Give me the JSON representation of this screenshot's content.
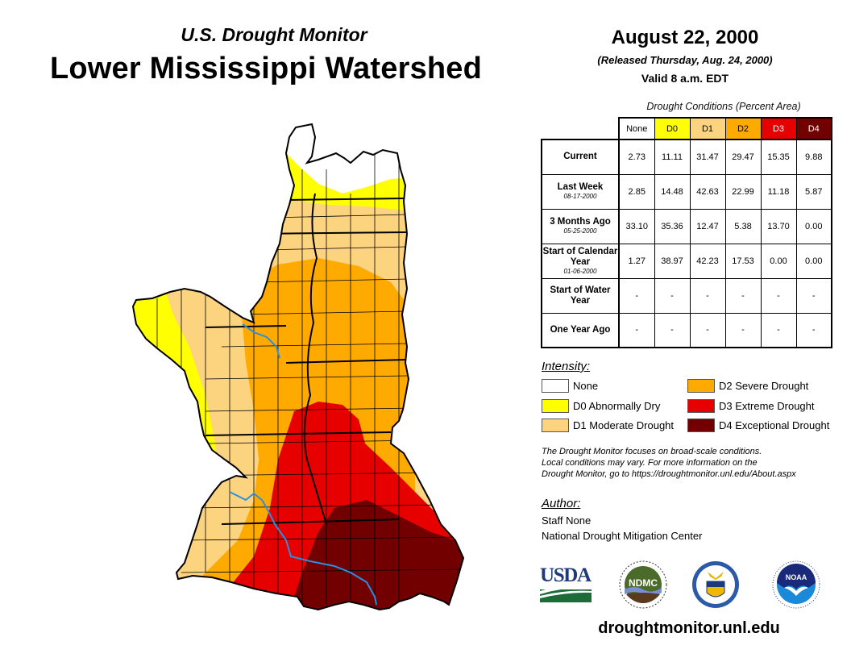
{
  "header": {
    "subtitle": "U.S. Drought Monitor",
    "title": "Lower Mississippi Watershed",
    "date": "August 22, 2000",
    "released": "(Released Thursday, Aug. 24, 2000)",
    "valid": "Valid 8 a.m. EDT"
  },
  "colors": {
    "none": "#ffffff",
    "d0": "#ffff00",
    "d1": "#fcd37f",
    "d2": "#ffaa00",
    "d3": "#e60000",
    "d4": "#730000",
    "river": "#2b8fe0"
  },
  "table": {
    "caption": "Drought Conditions (Percent Area)",
    "columns": [
      "None",
      "D0",
      "D1",
      "D2",
      "D3",
      "D4"
    ],
    "rows": [
      {
        "label": "Current",
        "sub": "",
        "values": [
          "2.73",
          "11.11",
          "31.47",
          "29.47",
          "15.35",
          "9.88"
        ]
      },
      {
        "label": "Last Week",
        "sub": "08-17-2000",
        "values": [
          "2.85",
          "14.48",
          "42.63",
          "22.99",
          "11.18",
          "5.87"
        ]
      },
      {
        "label": "3 Months Ago",
        "sub": "05-25-2000",
        "values": [
          "33.10",
          "35.36",
          "12.47",
          "5.38",
          "13.70",
          "0.00"
        ]
      },
      {
        "label": "Start of Calendar Year",
        "sub": "01-06-2000",
        "values": [
          "1.27",
          "38.97",
          "42.23",
          "17.53",
          "0.00",
          "0.00"
        ]
      },
      {
        "label": "Start of Water Year",
        "sub": "",
        "values": [
          "-",
          "-",
          "-",
          "-",
          "-",
          "-"
        ]
      },
      {
        "label": "One Year Ago",
        "sub": "",
        "values": [
          "-",
          "-",
          "-",
          "-",
          "-",
          "-"
        ]
      }
    ]
  },
  "legend": {
    "title": "Intensity:",
    "items": [
      {
        "label": "None",
        "key": "none"
      },
      {
        "label": "D0 Abnormally Dry",
        "key": "d0"
      },
      {
        "label": "D1 Moderate Drought",
        "key": "d1"
      },
      {
        "label": "D2 Severe Drought",
        "key": "d2"
      },
      {
        "label": "D3 Extreme Drought",
        "key": "d3"
      },
      {
        "label": "D4 Exceptional Drought",
        "key": "d4"
      }
    ]
  },
  "disclaimer": {
    "line1": "The Drought Monitor focuses on broad-scale conditions.",
    "line2": "Local conditions may vary. For more information on the",
    "line3": "Drought Monitor, go to https://droughtmonitor.unl.edu/About.aspx"
  },
  "author": {
    "title": "Author:",
    "name": "Staff None",
    "org": "National Drought Mitigation Center"
  },
  "logos": {
    "usda": "USDA",
    "ndmc": "NDMC",
    "noaa": "NOAA"
  },
  "footer": {
    "site": "droughtmonitor.unl.edu"
  }
}
